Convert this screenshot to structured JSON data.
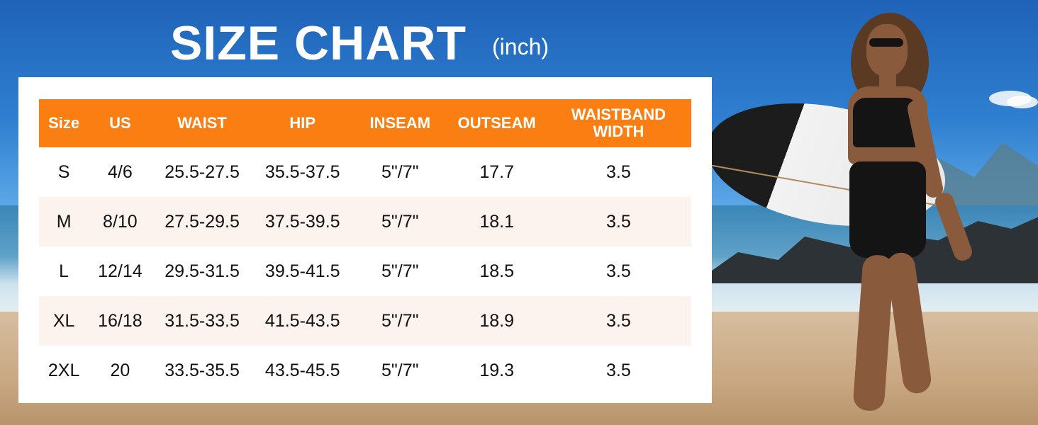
{
  "title": "SIZE CHART",
  "unit": "(inch)",
  "table": {
    "headers": [
      "Size",
      "US",
      "WAIST",
      "HIP",
      "INSEAM",
      "OUTSEAM",
      "WAISTBAND WIDTH"
    ],
    "rows": [
      [
        "S",
        "4/6",
        "25.5-27.5",
        "35.5-37.5",
        "5\"/7\"",
        "17.7",
        "3.5"
      ],
      [
        "M",
        "8/10",
        "27.5-29.5",
        "37.5-39.5",
        "5\"/7\"",
        "18.1",
        "3.5"
      ],
      [
        "L",
        "12/14",
        "29.5-31.5",
        "39.5-41.5",
        "5\"/7\"",
        "18.5",
        "3.5"
      ],
      [
        "XL",
        "16/18",
        "31.5-33.5",
        "41.5-43.5",
        "5\"/7\"",
        "18.9",
        "3.5"
      ],
      [
        "2XL",
        "20",
        "33.5-35.5",
        "43.5-45.5",
        "5\"/7\"",
        "19.3",
        "3.5"
      ]
    ]
  },
  "colors": {
    "header_bg": "#fb7e12",
    "alt_row_bg": "#fdf3ee",
    "title_text": "#ffffff"
  }
}
